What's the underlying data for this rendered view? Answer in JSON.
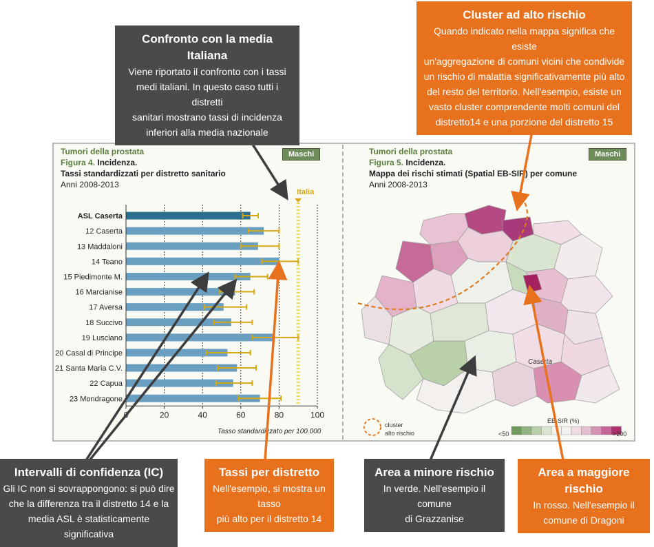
{
  "left_figure": {
    "topic": "Tumori della prostata",
    "figure_label": "Figura 4.",
    "figure_kind": "Incidenza.",
    "subtitle": "Tassi standardizzati per distretto sanitario",
    "years": "Anni 2008-2013",
    "sex_tag": "Maschi"
  },
  "right_figure": {
    "topic": "Tumori della prostata",
    "figure_label": "Figura 5.",
    "figure_kind": "Incidenza.",
    "subtitle": "Mappa dei rischi stimati (Spatial EB-SIR) per comune",
    "years": "Anni 2008-2013",
    "sex_tag": "Maschi",
    "city_label": "Caserta",
    "legend_cluster_line1": "cluster",
    "legend_cluster_line2": "alto rischio",
    "legend_scale_title": "EB-SIR (%)",
    "legend_low": "<50",
    "legend_high": ">200",
    "colors": {
      "low": "#6e9a5c",
      "mid": "#f4f1ee",
      "high": "#b0306e"
    }
  },
  "chart_data": {
    "type": "bar",
    "orientation": "horizontal",
    "categories": [
      "ASL Caserta",
      "12 Caserta",
      "13 Maddaloni",
      "14 Teano",
      "15 Piedimonte M.",
      "16 Marcianise",
      "17 Aversa",
      "18 Succivo",
      "19 Lusciano",
      "20 Casal di Principe",
      "21 Santa Maria C.V.",
      "22 Capua",
      "23 Mondragone"
    ],
    "values": [
      65,
      72,
      69,
      80,
      65,
      57,
      51,
      55,
      77,
      53,
      58,
      56,
      70
    ],
    "ci_low": [
      61,
      64,
      60,
      71,
      57,
      49,
      41,
      46,
      66,
      42,
      48,
      47,
      59
    ],
    "ci_high": [
      69,
      80,
      80,
      90,
      74,
      67,
      63,
      66,
      90,
      65,
      68,
      66,
      81
    ],
    "highlight": "ASL Caserta",
    "reference": {
      "label": "Italia",
      "value": 90
    },
    "xlim": [
      0,
      100
    ],
    "xticks": [
      0,
      20,
      40,
      60,
      80,
      100
    ],
    "xlabel": "Tasso standardizzato per 100.000",
    "colors": {
      "bar": "#6b9fc2",
      "highlight": "#2d6f8e",
      "ci": "#d6a811",
      "ref": "#e9dc52"
    }
  },
  "callouts": {
    "media_italiana": {
      "title": "Confronto con la media Italiana",
      "lines": [
        "Viene riportato il confronto con i tassi",
        "medi italiani. In questo caso tutti i distretti",
        "sanitari mostrano tassi di incidenza",
        "inferiori alla media nazionale"
      ]
    },
    "cluster": {
      "title": "Cluster ad alto rischio",
      "lines": [
        "Quando indicato nella mappa significa che esiste",
        "un'aggregazione di comuni vicini che condivide",
        "un rischio di malattia significativamente più alto",
        "del resto del territorio. Nell'esempio, esiste un",
        "vasto cluster comprendente molti comuni del",
        "distretto14 e una porzione del distretto 15"
      ]
    },
    "intervalli": {
      "title": "Intervalli di confidenza (IC)",
      "lines": [
        "Gli IC non si sovrappongono: si può dire",
        "che la differenza tra il distretto 14 e la",
        "media ASL è statisticamente significativa"
      ]
    },
    "tassi": {
      "title": "Tassi per distretto",
      "lines": [
        "Nell'esempio, si mostra un tasso",
        "più alto per il distretto 14"
      ]
    },
    "minore": {
      "title": "Area a minore rischio",
      "lines": [
        "In verde. Nell'esempio il comune",
        "di Grazzanise"
      ]
    },
    "maggiore": {
      "title": "Area a maggiore rischio",
      "lines": [
        "In rosso. Nell'esempio il",
        "comune di Dragoni"
      ]
    }
  }
}
